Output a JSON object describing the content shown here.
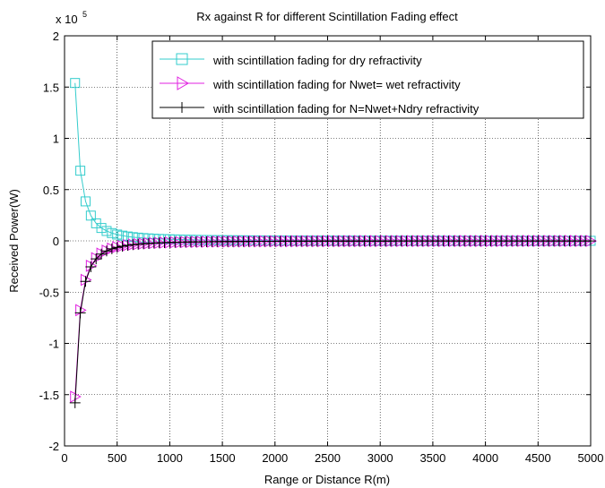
{
  "chart_data": {
    "type": "line",
    "title": "Rx against R for different Scintillation Fading effect",
    "xlabel": "Range or Distance R(m)",
    "ylabel": "Received Power(W)",
    "y_exponent_label": "x 10",
    "y_exponent_power": "5",
    "xlim": [
      0,
      5000
    ],
    "ylim": [
      -2,
      2
    ],
    "xticks": [
      0,
      500,
      1000,
      1500,
      2000,
      2500,
      3000,
      3500,
      4000,
      4500,
      5000
    ],
    "yticks": [
      -2,
      -1.5,
      -1,
      -0.5,
      0,
      0.5,
      1,
      1.5,
      2
    ],
    "ytick_labels": [
      "-2",
      "-1.5",
      "-1",
      "-0.5",
      "0",
      "0.5",
      "1",
      "1.5",
      "2"
    ],
    "grid": true,
    "legend_position": "top-right",
    "x_start": 100,
    "x_step": 50,
    "x_end": 5000,
    "series": [
      {
        "name": "with scintillation fading for dry refractivity",
        "color": "#33cccc",
        "marker": "square",
        "coef": 1.54
      },
      {
        "name": "with scintillation fading for Nwet= wet refractivity",
        "color": "#e020e0",
        "marker": "triangle-right",
        "coef": -1.52
      },
      {
        "name": "with scintillation fading for N=Nwet+Ndry refractivity",
        "color": "#000000",
        "marker": "plus",
        "coef": -1.58
      }
    ]
  }
}
